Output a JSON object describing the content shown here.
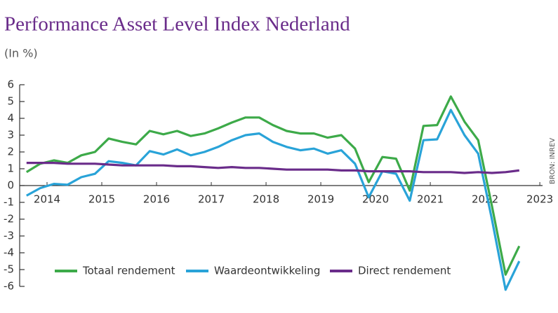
{
  "chart_data": {
    "type": "line",
    "title": "Performance Asset Level Index Nederland",
    "subtitle": "(In %)",
    "source": "BRON: INREV",
    "x": [
      2013.625,
      2013.875,
      2014.125,
      2014.375,
      2014.625,
      2014.875,
      2015.125,
      2015.375,
      2015.625,
      2015.875,
      2016.125,
      2016.375,
      2016.625,
      2016.875,
      2017.125,
      2017.375,
      2017.625,
      2017.875,
      2018.125,
      2018.375,
      2018.625,
      2018.875,
      2019.125,
      2019.375,
      2019.625,
      2019.875,
      2020.125,
      2020.375,
      2020.625,
      2020.875,
      2021.125,
      2021.375,
      2021.625,
      2021.875,
      2022.125,
      2022.375,
      2022.625
    ],
    "series": [
      {
        "name": "Totaal rendement",
        "color": "#3daa49",
        "values": [
          0.8,
          1.3,
          1.5,
          1.35,
          1.8,
          2.0,
          2.8,
          2.6,
          2.45,
          3.25,
          3.05,
          3.25,
          2.95,
          3.1,
          3.4,
          3.75,
          4.05,
          4.05,
          3.6,
          3.25,
          3.1,
          3.1,
          2.85,
          3.0,
          2.2,
          0.2,
          1.7,
          1.6,
          -0.3,
          3.55,
          3.6,
          5.3,
          3.8,
          2.7,
          -1.2,
          -5.3,
          -3.6
        ]
      },
      {
        "name": "Waardeontwikkeling",
        "color": "#29a3d8",
        "values": [
          -0.6,
          -0.15,
          0.1,
          0.05,
          0.5,
          0.7,
          1.45,
          1.35,
          1.2,
          2.05,
          1.85,
          2.15,
          1.8,
          2.0,
          2.3,
          2.7,
          3.0,
          3.1,
          2.6,
          2.3,
          2.1,
          2.2,
          1.9,
          2.1,
          1.3,
          -0.7,
          0.85,
          0.7,
          -0.9,
          2.7,
          2.75,
          4.5,
          3.0,
          1.9,
          -2.0,
          -6.2,
          -4.5
        ]
      },
      {
        "name": "Direct rendement",
        "color": "#6a2c8a",
        "values": [
          1.35,
          1.35,
          1.35,
          1.3,
          1.3,
          1.3,
          1.25,
          1.2,
          1.2,
          1.2,
          1.2,
          1.15,
          1.15,
          1.1,
          1.05,
          1.1,
          1.05,
          1.05,
          1.0,
          0.95,
          0.95,
          0.95,
          0.95,
          0.9,
          0.9,
          0.85,
          0.85,
          0.85,
          0.85,
          0.8,
          0.8,
          0.8,
          0.75,
          0.8,
          0.75,
          0.8,
          0.9
        ]
      }
    ],
    "xlim": [
      2013.5,
      2023.05
    ],
    "xticks": [
      2014,
      2015,
      2016,
      2017,
      2018,
      2019,
      2020,
      2021,
      2022,
      2023
    ],
    "ylim": [
      -6,
      6
    ],
    "yticks": [
      -6,
      -5,
      -4,
      -3,
      -2,
      -1,
      0,
      1,
      2,
      3,
      4,
      5,
      6
    ],
    "legend": "bottom"
  }
}
